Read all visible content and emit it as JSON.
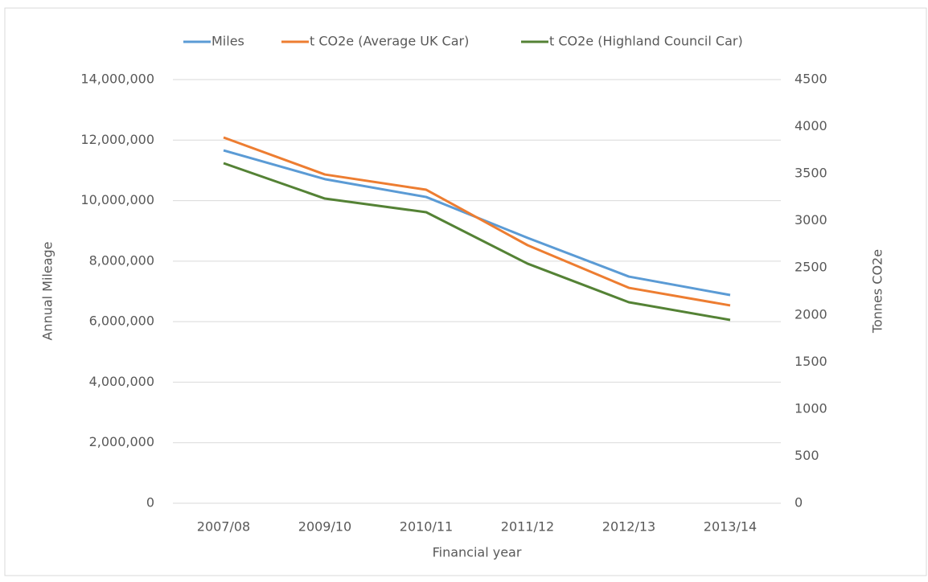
{
  "chart_data": {
    "type": "line",
    "categories": [
      "2007/08",
      "2009/10",
      "2010/11",
      "2011/12",
      "2012/13",
      "2013/14"
    ],
    "series": [
      {
        "name": "Miles",
        "color": "#5b9bd5",
        "values": [
          11660000,
          10710000,
          10120000,
          8770000,
          7490000,
          6880000
        ]
      },
      {
        "name": "t CO2e (Average UK Car)",
        "color": "#ed7d31",
        "axis": "y2",
        "values": [
          3885,
          3492,
          3330,
          2741,
          2288,
          2101
        ]
      },
      {
        "name": "t CO2e (Highland Council Car)",
        "color": "#548235",
        "axis": "y2",
        "values": [
          3612,
          3236,
          3091,
          2545,
          2135,
          1947
        ]
      }
    ],
    "ylabel": "Annual Mileage",
    "y2label": "Tonnes CO2e",
    "xlabel": "Financial year",
    "ylim": [
      0,
      14000000
    ],
    "yticks": [
      0,
      {
        "value": 2000000,
        "label": "2,000,000"
      },
      {
        "value": 4000000,
        "label": "4,000,000"
      },
      {
        "value": 6000000,
        "label": "6,000,000"
      },
      {
        "value": 8000000,
        "label": "8,000,000"
      },
      {
        "value": 10000000,
        "label": "10,000,000"
      },
      {
        "value": 12000000,
        "label": "12,000,000"
      },
      {
        "value": 14000000,
        "label": "14,000,000"
      }
    ],
    "y2lim": [
      0,
      4500
    ],
    "y2ticks": [
      0,
      500,
      1000,
      1500,
      2000,
      2500,
      3000,
      3500,
      4000,
      4500
    ],
    "grid": true,
    "legend": "top"
  }
}
